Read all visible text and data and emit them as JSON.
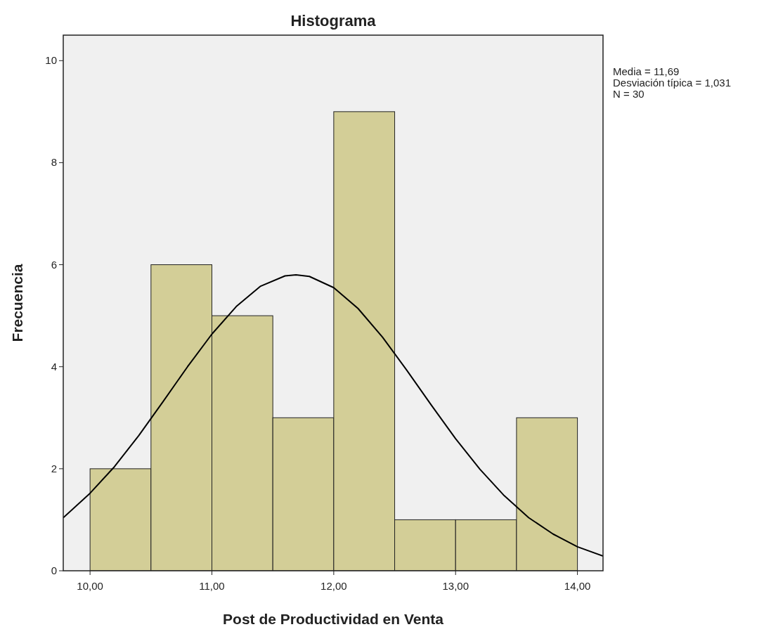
{
  "chart_data": {
    "type": "histogram",
    "title": "Histograma",
    "xlabel": "Post de Productividad en Venta",
    "ylabel": "Frecuencia",
    "bins": [
      10,
      10.5,
      11,
      11.5,
      12,
      12.5,
      13,
      13.5,
      14
    ],
    "values": [
      2,
      6,
      5,
      3,
      9,
      1,
      1,
      3
    ],
    "color": "#d3ce97",
    "series": [
      {
        "type": "line",
        "color": "#000000",
        "x": [
          9.78,
          10,
          10.2,
          10.4,
          10.6,
          10.8,
          11,
          11.2,
          11.4,
          11.6,
          11.69,
          11.8,
          12,
          12.2,
          12.4,
          12.6,
          12.8,
          13,
          13.2,
          13.4,
          13.6,
          13.8,
          14,
          14.21
        ],
        "values": [
          1.04,
          1.52,
          2.04,
          2.65,
          3.32,
          4.0,
          4.64,
          5.18,
          5.58,
          5.78,
          5.8,
          5.77,
          5.55,
          5.14,
          4.58,
          3.93,
          3.25,
          2.59,
          1.99,
          1.47,
          1.04,
          0.72,
          0.47,
          0.29
        ]
      }
    ],
    "xlim": [
      9.78,
      14.21
    ],
    "ylim": [
      0,
      10.5
    ],
    "xticks": [
      {
        "value": 10,
        "label": "10,00"
      },
      {
        "value": 11,
        "label": "11,00"
      },
      {
        "value": 12,
        "label": "12,00"
      },
      {
        "value": 13,
        "label": "13,00"
      },
      {
        "value": 14,
        "label": "14,00"
      }
    ],
    "yticks": [
      0,
      2,
      4,
      6,
      8,
      10
    ],
    "grid": false,
    "annotations": [
      "Media = 11,69",
      "Desviación típica = 1,031",
      "N = 30"
    ]
  }
}
